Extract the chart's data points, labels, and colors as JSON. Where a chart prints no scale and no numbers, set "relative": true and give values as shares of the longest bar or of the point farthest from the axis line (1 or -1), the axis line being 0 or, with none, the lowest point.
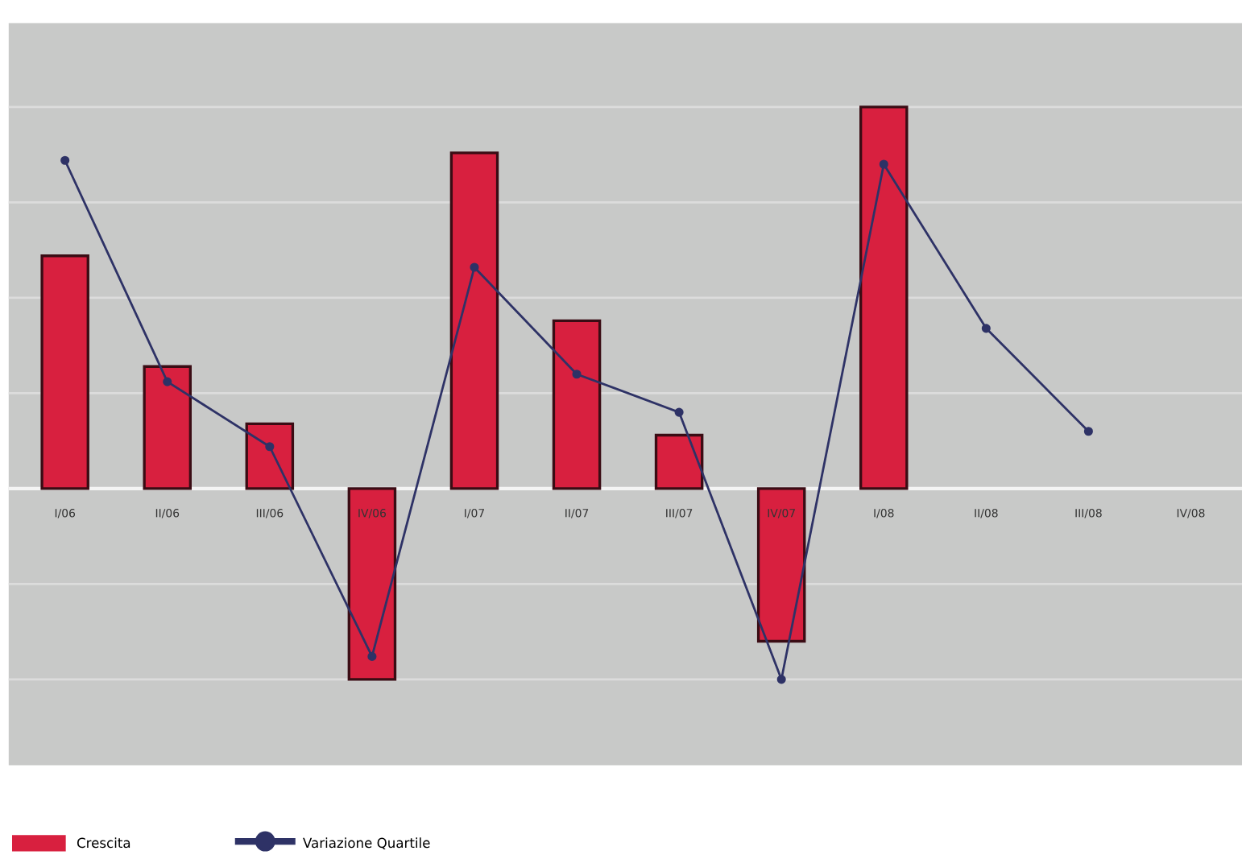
{
  "chart_data": {
    "type": "bar",
    "relative": true,
    "grid": "y",
    "legend": "bottom left",
    "marker": "circle",
    "categories": [
      "I/06",
      "II/06",
      "III/06",
      "IV/06",
      "I/07",
      "II/07",
      "III/07",
      "IV/07",
      "I/08",
      "II/08",
      "III/08",
      "IV/08"
    ],
    "series": [
      {
        "name": "Crescita",
        "color": "#d8203f",
        "values": [
          0.61,
          0.32,
          0.17,
          -0.5,
          0.88,
          0.44,
          0.14,
          -0.4,
          1,
          null,
          null,
          null
        ]
      },
      {
        "name": "Variazione Quartile",
        "type": "line",
        "color": "#2e3266",
        "values": [
          0.86,
          0.28,
          0.11,
          -0.44,
          0.58,
          0.3,
          0.2,
          -0.5,
          0.85,
          0.42,
          0.15,
          null
        ]
      }
    ]
  }
}
